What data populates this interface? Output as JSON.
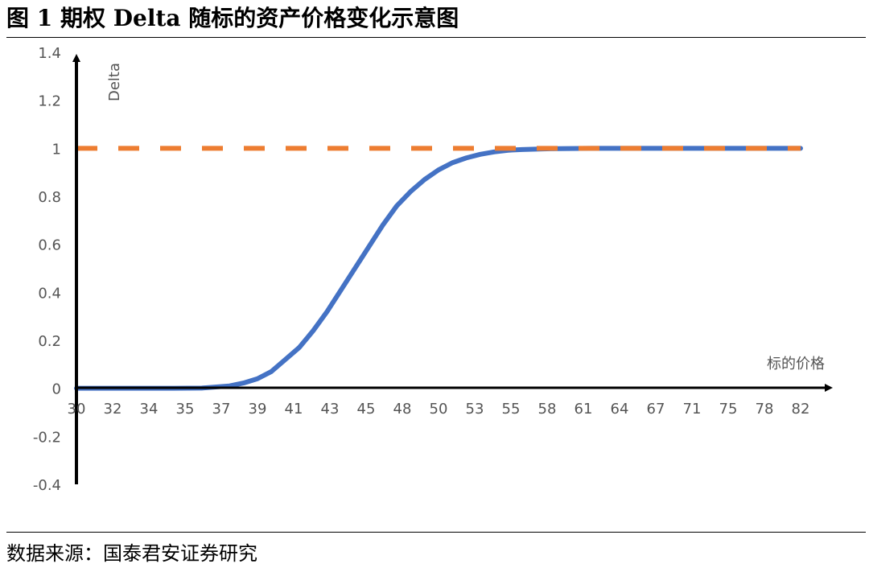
{
  "figure": {
    "title": "图 1 期权 Delta 随标的资产价格变化示意图",
    "source": "数据来源：国泰君安证券研究"
  },
  "chart_data": {
    "type": "line",
    "xlabel": "标的价格",
    "ylabel": "Delta",
    "ylim": [
      -0.4,
      1.4
    ],
    "y_ticks": [
      1.4,
      1.2,
      1,
      0.8,
      0.6,
      0.4,
      0.2,
      0,
      -0.2,
      -0.4
    ],
    "y_tick_labels": [
      "1.4",
      "1.2",
      "1",
      "0.8",
      "0.6",
      "0.4",
      "0.2",
      "0",
      "-0.2",
      "-0.4"
    ],
    "x_tick_labels": [
      "30",
      "32",
      "34",
      "35",
      "37",
      "39",
      "41",
      "43",
      "45",
      "48",
      "50",
      "53",
      "55",
      "58",
      "61",
      "64",
      "67",
      "71",
      "75",
      "78",
      "82"
    ],
    "grid": false,
    "legend": "none",
    "series": [
      {
        "color": "#4472C4",
        "style": "solid",
        "x": [
          30,
          32,
          34,
          35,
          37,
          39,
          41,
          42,
          43,
          44,
          45,
          46,
          47,
          48,
          49,
          50,
          51,
          52,
          53,
          54,
          55,
          56,
          57,
          58,
          59,
          60,
          61,
          62,
          64,
          67,
          71,
          75,
          78,
          82
        ],
        "y": [
          0.0,
          0.0,
          0.0,
          0.0,
          0.0,
          0.001,
          0.01,
          0.022,
          0.04,
          0.07,
          0.12,
          0.17,
          0.24,
          0.32,
          0.41,
          0.5,
          0.59,
          0.68,
          0.76,
          0.82,
          0.87,
          0.91,
          0.94,
          0.96,
          0.975,
          0.985,
          0.992,
          0.995,
          0.998,
          1.0,
          1.0,
          1.0,
          1.0,
          1.0
        ]
      },
      {
        "color": "#ED7D31",
        "style": "dashed",
        "x": [
          30,
          82
        ],
        "y": [
          1,
          1
        ]
      }
    ]
  }
}
